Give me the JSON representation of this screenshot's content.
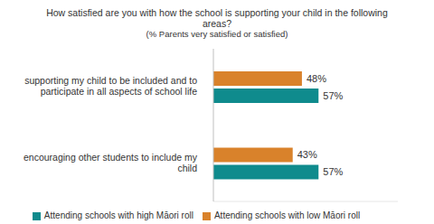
{
  "chart_data": {
    "type": "bar",
    "title": "How satisfied are you with how the school is supporting your child in the following areas?",
    "subtitle": "(% Parents very satisfied or satisfied)",
    "orientation": "horizontal",
    "categories": [
      "supporting my child to be included and to participate in all aspects of school life",
      "encouraging other students to include my child"
    ],
    "series": [
      {
        "name": "Attending schools with low Māori roll",
        "color": "#d9822b",
        "values": [
          48,
          43
        ],
        "value_labels": [
          "48%",
          "43%"
        ]
      },
      {
        "name": "Attending schools with high Māori roll",
        "color": "#0f8b8d",
        "values": [
          57,
          57
        ],
        "value_labels": [
          "57%",
          "57%"
        ]
      }
    ],
    "xlim": [
      0,
      100
    ],
    "data_labels": true,
    "tick_labels": "y",
    "legend": "bottom",
    "grid": false
  }
}
